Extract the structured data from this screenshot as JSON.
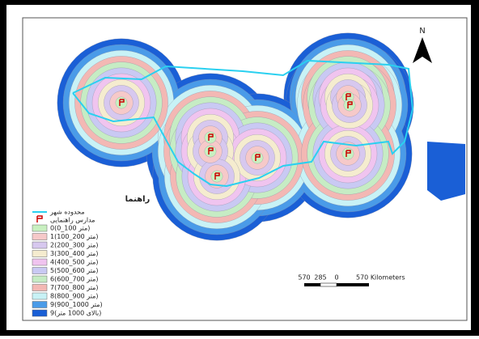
{
  "north_arrow": {
    "label": "N"
  },
  "legend": {
    "title": "راهنما",
    "boundary_label": "محدوده شهر",
    "schools_label": "مدارس راهنمایی",
    "items": [
      {
        "label": "0(0_100 متر)",
        "color": "#c9f0c0"
      },
      {
        "label": "1(100_200 متر)",
        "color": "#f6c9c9"
      },
      {
        "label": "2(200_300 متر)",
        "color": "#d7c8ef"
      },
      {
        "label": "3(300_400 متر)",
        "color": "#f5eccf"
      },
      {
        "label": "4(400_500 متر)",
        "color": "#f0c4ef"
      },
      {
        "label": "5(500_600 متر)",
        "color": "#c9c9f3"
      },
      {
        "label": "6(600_700 متر)",
        "color": "#c6ecc4"
      },
      {
        "label": "7(700_800 متر)",
        "color": "#f3b8b4"
      },
      {
        "label": "8(800_900 متر)",
        "color": "#c8f2f6"
      },
      {
        "label": "9(900_1000 متر)",
        "color": "#4a9be8"
      },
      {
        "label": "9(بالای 1000 متر)",
        "color": "#1a5fd6"
      }
    ]
  },
  "scale_bar": {
    "labels": [
      "570",
      "285",
      "0",
      "570 Kilometers"
    ]
  }
}
